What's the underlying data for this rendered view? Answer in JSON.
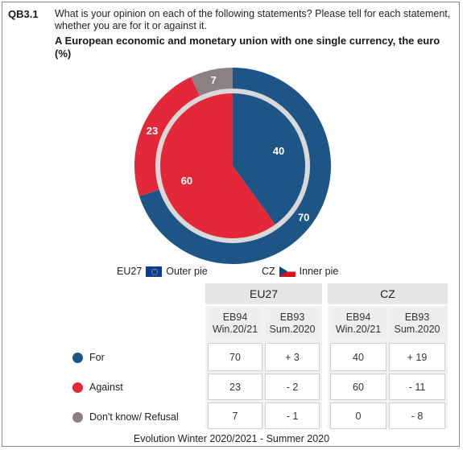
{
  "header": {
    "code": "QB3.1",
    "question": "What is your opinion on each of the following statements? Please tell for each statement, whether you are for it or against it.",
    "subtitle": "A European economic and monetary union with one single currency, the euro (%)"
  },
  "legend": {
    "outer_label": "EU27",
    "outer_suffix": "Outer pie",
    "inner_label": "CZ",
    "inner_suffix": "Inner pie"
  },
  "colors": {
    "for": "#1d5587",
    "against": "#e3283a",
    "dontknow": "#8c8182",
    "ring": "#d9d9d9"
  },
  "chart_data": {
    "type": "pie",
    "title": "A European economic and monetary union with one single currency, the euro (%)",
    "categories": [
      "For",
      "Against",
      "Don't know/ Refusal"
    ],
    "series": [
      {
        "name": "EU27",
        "values": [
          70,
          23,
          7
        ]
      },
      {
        "name": "CZ",
        "values": [
          40,
          60,
          0
        ]
      }
    ]
  },
  "table": {
    "groups": [
      "EU27",
      "CZ"
    ],
    "subheads": [
      {
        "line1": "EB94",
        "line2": "Win.20/21"
      },
      {
        "line1": "EB93",
        "line2": "Sum.2020"
      },
      {
        "line1": "EB94",
        "line2": "Win.20/21"
      },
      {
        "line1": "EB93",
        "line2": "Sum.2020"
      }
    ],
    "rows": [
      {
        "label": "For",
        "cells": [
          "70",
          "+ 3",
          "40",
          "+ 19"
        ]
      },
      {
        "label": "Against",
        "cells": [
          "23",
          "- 2",
          "60",
          "- 11"
        ]
      },
      {
        "label": "Don't know/ Refusal",
        "cells": [
          "7",
          "- 1",
          "0",
          "- 8"
        ]
      }
    ]
  },
  "footer": "Evolution Winter 2020/2021 - Summer 2020"
}
